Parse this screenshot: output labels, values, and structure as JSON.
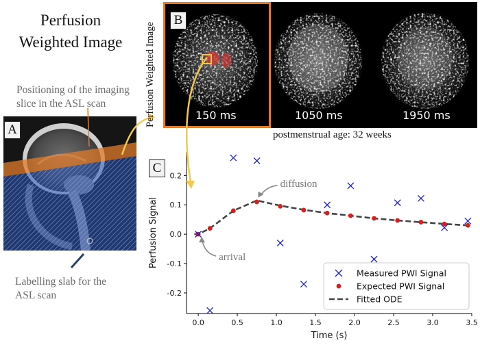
{
  "figure": {
    "title_line1": "Perfusion",
    "title_line2": "Weighted Image",
    "panel_a": "A",
    "panel_b": "B",
    "panel_c": "C",
    "note_slice_line1": "Positioning of the imaging",
    "note_slice_line2": "slice in the ASL scan",
    "note_slab_line1": "Labelling slab for the",
    "note_slab_line2": "ASL scan",
    "pwi_axis_label": "Perfusion Weighted Image",
    "pwi_times": [
      "150 ms",
      "1050 ms",
      "1950 ms"
    ],
    "age_caption": "postmenstrual age: 32 weeks",
    "colors": {
      "orange": "#e07b2a",
      "yellow": "#f2c94c",
      "slab_blue": "#4f7fd6"
    }
  },
  "chart_data": {
    "type": "scatter",
    "xlabel": "Time (s)",
    "ylabel": "Perfusion Signal",
    "xlim": [
      -0.15,
      3.5
    ],
    "ylim": [
      -0.27,
      0.28
    ],
    "xticks": [
      "0.0",
      "0.5",
      "1.0",
      "1.5",
      "2.0",
      "2.5",
      "3.0",
      "3.5"
    ],
    "yticks": [
      "-0.2",
      "-0.1",
      "0.0",
      "0.1",
      "0.2"
    ],
    "xtick_values": [
      0.0,
      0.5,
      1.0,
      1.5,
      2.0,
      2.5,
      3.0,
      3.5
    ],
    "ytick_values": [
      -0.2,
      -0.1,
      0.0,
      0.1,
      0.2
    ],
    "annotations": [
      "diffusion",
      "arrival"
    ],
    "series": [
      {
        "name": "Measured PWI Signal",
        "marker": "x",
        "color": "#1f1fd0",
        "x": [
          0.0,
          0.15,
          0.45,
          0.75,
          1.05,
          1.35,
          1.65,
          1.95,
          2.25,
          2.55,
          2.85,
          3.15,
          3.45
        ],
        "y": [
          0.0,
          -0.26,
          0.26,
          0.25,
          -0.03,
          -0.17,
          0.1,
          0.165,
          -0.085,
          0.107,
          0.122,
          0.022,
          0.045
        ]
      },
      {
        "name": "Expected PWI Signal",
        "marker": "dot",
        "color": "#d62020",
        "x": [
          0.0,
          0.15,
          0.45,
          0.75,
          1.05,
          1.35,
          1.65,
          1.95,
          2.25,
          2.55,
          2.85,
          3.15,
          3.45
        ],
        "y": [
          0.0,
          0.02,
          0.08,
          0.11,
          0.095,
          0.082,
          0.072,
          0.063,
          0.054,
          0.047,
          0.041,
          0.035,
          0.03
        ]
      },
      {
        "name": "Fitted ODE",
        "marker": "dashed-line",
        "color": "#444444",
        "x": [
          -0.05,
          0.0,
          0.15,
          0.45,
          0.75,
          1.05,
          1.35,
          1.65,
          1.95,
          2.25,
          2.55,
          2.85,
          3.15,
          3.45
        ],
        "y": [
          0.0,
          0.0,
          0.02,
          0.08,
          0.115,
          0.097,
          0.083,
          0.072,
          0.063,
          0.054,
          0.047,
          0.041,
          0.035,
          0.03
        ]
      }
    ]
  }
}
